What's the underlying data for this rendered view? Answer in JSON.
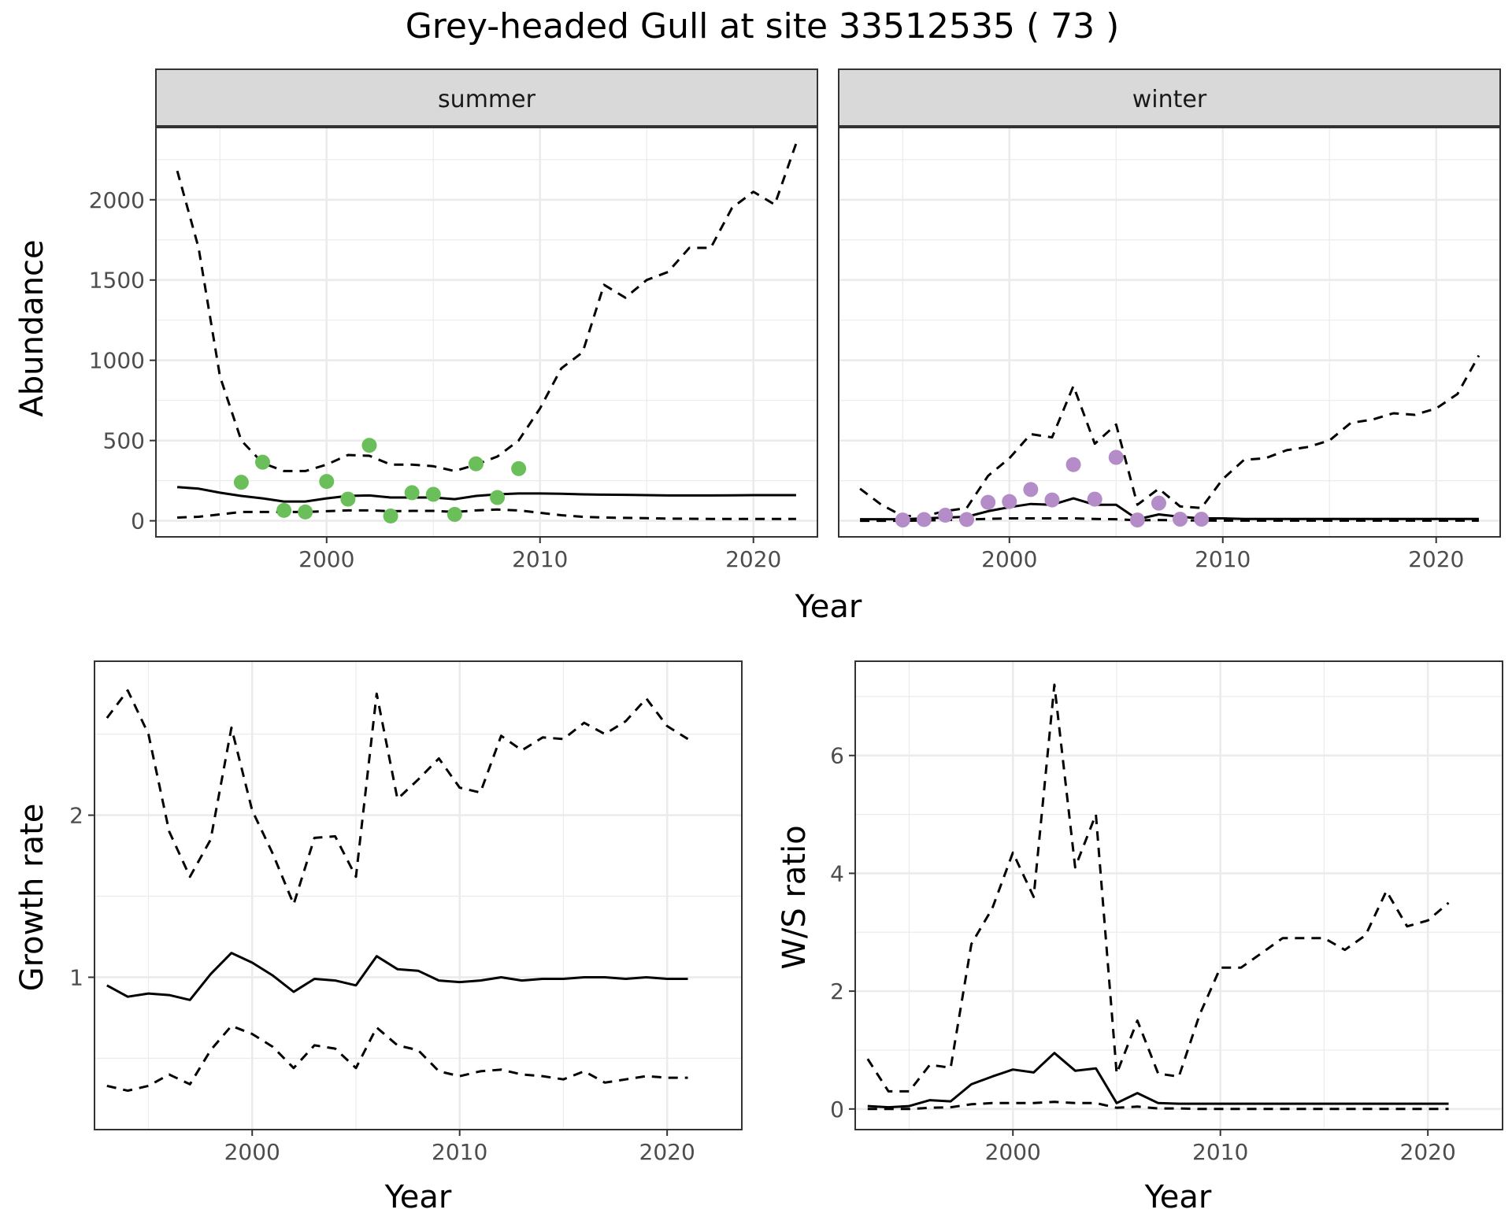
{
  "title": "Grey-headed Gull at site 33512535 ( 73 )",
  "colors": {
    "summer_points": "#6abf5b",
    "winter_points": "#b48cc8",
    "lines": "#000000",
    "strip_fill": "#d9d9d9",
    "grid": "#ebebeb"
  },
  "chart_data": [
    {
      "id": "abundance-summer",
      "type": "line",
      "facet": "summer",
      "xlabel": "Year",
      "ylabel": "Abundance",
      "xlim": [
        1992,
        2023
      ],
      "ylim": [
        -100,
        2450
      ],
      "xticks": [
        2000,
        2010,
        2020
      ],
      "yticks": [
        0,
        500,
        1000,
        1500,
        2000
      ],
      "grid": true,
      "lines": [
        {
          "style": "solid",
          "x": [
            1993,
            1994,
            1995,
            1996,
            1997,
            1998,
            1999,
            2000,
            2001,
            2002,
            2003,
            2004,
            2005,
            2006,
            2007,
            2008,
            2009,
            2010,
            2011,
            2012,
            2013,
            2014,
            2015,
            2016,
            2017,
            2018,
            2019,
            2020,
            2021,
            2022
          ],
          "y": [
            210,
            200,
            175,
            155,
            140,
            120,
            120,
            140,
            155,
            158,
            145,
            145,
            145,
            135,
            155,
            165,
            170,
            170,
            168,
            165,
            163,
            162,
            160,
            158,
            158,
            158,
            159,
            160,
            160,
            160
          ]
        },
        {
          "style": "dashed",
          "x": [
            1993,
            1994,
            1995,
            1996,
            1997,
            1998,
            1999,
            2000,
            2001,
            2002,
            2003,
            2004,
            2005,
            2006,
            2007,
            2008,
            2009,
            2010,
            2011,
            2012,
            2013,
            2014,
            2015,
            2016,
            2017,
            2018,
            2019,
            2020,
            2021,
            2022
          ],
          "y": [
            2180,
            1700,
            900,
            500,
            360,
            310,
            310,
            350,
            410,
            405,
            350,
            350,
            340,
            310,
            350,
            400,
            500,
            700,
            950,
            1050,
            1470,
            1390,
            1500,
            1550,
            1700,
            1700,
            1950,
            2050,
            1970,
            2350
          ]
        },
        {
          "style": "dashed",
          "x": [
            1993,
            1994,
            1995,
            1996,
            1997,
            1998,
            1999,
            2000,
            2001,
            2002,
            2003,
            2004,
            2005,
            2006,
            2007,
            2008,
            2009,
            2010,
            2011,
            2012,
            2013,
            2014,
            2015,
            2016,
            2017,
            2018,
            2019,
            2020,
            2021,
            2022
          ],
          "y": [
            20,
            25,
            40,
            55,
            55,
            55,
            55,
            60,
            65,
            65,
            60,
            62,
            62,
            55,
            65,
            70,
            65,
            50,
            35,
            25,
            20,
            18,
            16,
            14,
            13,
            12,
            12,
            12,
            12,
            12
          ]
        }
      ],
      "points": {
        "x": [
          1996,
          1997,
          1998,
          1999,
          2000,
          2001,
          2002,
          2003,
          2004,
          2005,
          2006,
          2007,
          2008,
          2009
        ],
        "y": [
          240,
          365,
          65,
          55,
          245,
          135,
          470,
          30,
          175,
          165,
          40,
          355,
          145,
          325
        ]
      }
    },
    {
      "id": "abundance-winter",
      "type": "line",
      "facet": "winter",
      "xlabel": "Year",
      "ylabel": "Abundance",
      "xlim": [
        1992,
        2023
      ],
      "ylim": [
        -100,
        2450
      ],
      "xticks": [
        2000,
        2010,
        2020
      ],
      "yticks": [
        0,
        500,
        1000,
        1500,
        2000
      ],
      "grid": true,
      "lines": [
        {
          "style": "solid",
          "x": [
            1993,
            1994,
            1995,
            1996,
            1997,
            1998,
            1999,
            2000,
            2001,
            2002,
            2003,
            2004,
            2005,
            2006,
            2007,
            2008,
            2009,
            2010,
            2011,
            2012,
            2013,
            2014,
            2015,
            2016,
            2017,
            2018,
            2019,
            2020,
            2021,
            2022
          ],
          "y": [
            10,
            10,
            10,
            15,
            20,
            25,
            60,
            85,
            105,
            100,
            140,
            100,
            100,
            10,
            40,
            25,
            15,
            15,
            12,
            12,
            12,
            12,
            12,
            12,
            12,
            12,
            12,
            12,
            12,
            12
          ]
        },
        {
          "style": "dashed",
          "x": [
            1993,
            1994,
            1995,
            1996,
            1997,
            1998,
            1999,
            2000,
            2001,
            2002,
            2003,
            2004,
            2005,
            2006,
            2007,
            2008,
            2009,
            2010,
            2011,
            2012,
            2013,
            2014,
            2015,
            2016,
            2017,
            2018,
            2019,
            2020,
            2021,
            2022
          ],
          "y": [
            200,
            100,
            30,
            30,
            60,
            80,
            280,
            390,
            540,
            520,
            840,
            480,
            600,
            100,
            200,
            90,
            80,
            260,
            380,
            390,
            440,
            460,
            500,
            610,
            630,
            670,
            660,
            700,
            790,
            1030
          ]
        },
        {
          "style": "dashed",
          "x": [
            1993,
            1994,
            1995,
            1996,
            1997,
            1998,
            1999,
            2000,
            2001,
            2002,
            2003,
            2004,
            2005,
            2006,
            2007,
            2008,
            2009,
            2010,
            2011,
            2012,
            2013,
            2014,
            2015,
            2016,
            2017,
            2018,
            2019,
            2020,
            2021,
            2022
          ],
          "y": [
            0,
            0,
            0,
            2,
            5,
            8,
            12,
            15,
            15,
            15,
            15,
            12,
            10,
            3,
            5,
            3,
            2,
            1,
            1,
            1,
            1,
            1,
            1,
            1,
            1,
            1,
            1,
            1,
            1,
            1
          ]
        }
      ],
      "points": {
        "x": [
          1995,
          1996,
          1997,
          1998,
          1999,
          2000,
          2001,
          2002,
          2003,
          2004,
          2005,
          2006,
          2007,
          2008,
          2009
        ],
        "y": [
          5,
          8,
          35,
          8,
          115,
          120,
          195,
          130,
          350,
          135,
          395,
          5,
          110,
          10,
          10
        ]
      }
    },
    {
      "id": "growth-rate",
      "type": "line",
      "xlabel": "Year",
      "ylabel": "Growth rate",
      "xlim": [
        1992.4,
        2023.6
      ],
      "ylim": [
        0.06,
        2.95
      ],
      "xticks": [
        2000,
        2010,
        2020
      ],
      "yticks": [
        1,
        2
      ],
      "grid": true,
      "lines": [
        {
          "style": "solid",
          "x": [
            1993,
            1994,
            1995,
            1996,
            1997,
            1998,
            1999,
            2000,
            2001,
            2002,
            2003,
            2004,
            2005,
            2006,
            2007,
            2008,
            2009,
            2010,
            2011,
            2012,
            2013,
            2014,
            2015,
            2016,
            2017,
            2018,
            2019,
            2020,
            2021
          ],
          "y": [
            0.95,
            0.88,
            0.9,
            0.89,
            0.86,
            1.02,
            1.15,
            1.09,
            1.01,
            0.91,
            0.99,
            0.98,
            0.95,
            1.13,
            1.05,
            1.04,
            0.98,
            0.97,
            0.98,
            1.0,
            0.98,
            0.99,
            0.99,
            1.0,
            1.0,
            0.99,
            1.0,
            0.99,
            0.99
          ]
        },
        {
          "style": "dashed",
          "x": [
            1993,
            1994,
            1995,
            1996,
            1997,
            1998,
            1999,
            2000,
            2001,
            2002,
            2003,
            2004,
            2005,
            2006,
            2007,
            2008,
            2009,
            2010,
            2011,
            2012,
            2013,
            2014,
            2015,
            2016,
            2017,
            2018,
            2019,
            2020,
            2021
          ],
          "y": [
            2.6,
            2.77,
            2.5,
            1.9,
            1.62,
            1.85,
            2.54,
            2.03,
            1.76,
            1.45,
            1.86,
            1.87,
            1.62,
            2.75,
            2.1,
            2.22,
            2.35,
            2.17,
            2.14,
            2.49,
            2.4,
            2.48,
            2.47,
            2.57,
            2.5,
            2.58,
            2.72,
            2.55,
            2.47
          ]
        },
        {
          "style": "dashed",
          "x": [
            1993,
            1994,
            1995,
            1996,
            1997,
            1998,
            1999,
            2000,
            2001,
            2002,
            2003,
            2004,
            2005,
            2006,
            2007,
            2008,
            2009,
            2010,
            2011,
            2012,
            2013,
            2014,
            2015,
            2016,
            2017,
            2018,
            2019,
            2020,
            2021
          ],
          "y": [
            0.33,
            0.3,
            0.33,
            0.4,
            0.34,
            0.55,
            0.7,
            0.65,
            0.57,
            0.44,
            0.58,
            0.56,
            0.44,
            0.69,
            0.58,
            0.55,
            0.42,
            0.39,
            0.42,
            0.43,
            0.4,
            0.39,
            0.37,
            0.42,
            0.35,
            0.37,
            0.39,
            0.38,
            0.38
          ]
        }
      ]
    },
    {
      "id": "ws-ratio",
      "type": "line",
      "xlabel": "Year",
      "ylabel": "W/S ratio",
      "xlim": [
        1992.4,
        2023.6
      ],
      "ylim": [
        -0.35,
        7.6
      ],
      "xticks": [
        2000,
        2010,
        2020
      ],
      "yticks": [
        0,
        2,
        4,
        6
      ],
      "grid": true,
      "lines": [
        {
          "style": "solid",
          "x": [
            1993,
            1994,
            1995,
            1996,
            1997,
            1998,
            1999,
            2000,
            2001,
            2002,
            2003,
            2004,
            2005,
            2006,
            2007,
            2008,
            2009,
            2010,
            2011,
            2012,
            2013,
            2014,
            2015,
            2016,
            2017,
            2018,
            2019,
            2020,
            2021
          ],
          "y": [
            0.05,
            0.03,
            0.05,
            0.15,
            0.13,
            0.42,
            0.55,
            0.67,
            0.62,
            0.95,
            0.65,
            0.69,
            0.1,
            0.27,
            0.1,
            0.09,
            0.09,
            0.09,
            0.09,
            0.09,
            0.09,
            0.09,
            0.09,
            0.09,
            0.09,
            0.09,
            0.09,
            0.09,
            0.09
          ]
        },
        {
          "style": "dashed",
          "x": [
            1993,
            1994,
            1995,
            1996,
            1997,
            1998,
            1999,
            2000,
            2001,
            2002,
            2003,
            2004,
            2005,
            2006,
            2007,
            2008,
            2009,
            2010,
            2011,
            2012,
            2013,
            2014,
            2015,
            2016,
            2017,
            2018,
            2019,
            2020,
            2021
          ],
          "y": [
            0.85,
            0.3,
            0.3,
            0.75,
            0.7,
            2.8,
            3.4,
            4.35,
            3.6,
            7.2,
            4.1,
            5.0,
            0.6,
            1.5,
            0.6,
            0.55,
            1.6,
            2.4,
            2.4,
            2.65,
            2.9,
            2.9,
            2.9,
            2.7,
            2.95,
            3.7,
            3.1,
            3.2,
            3.5
          ]
        },
        {
          "style": "dashed",
          "x": [
            1993,
            1994,
            1995,
            1996,
            1997,
            1998,
            1999,
            2000,
            2001,
            2002,
            2003,
            2004,
            2005,
            2006,
            2007,
            2008,
            2009,
            2010,
            2011,
            2012,
            2013,
            2014,
            2015,
            2016,
            2017,
            2018,
            2019,
            2020,
            2021
          ],
          "y": [
            0.0,
            0.0,
            0.0,
            0.02,
            0.03,
            0.08,
            0.1,
            0.1,
            0.1,
            0.12,
            0.1,
            0.1,
            0.02,
            0.04,
            0.01,
            0.01,
            0.0,
            0.0,
            0.0,
            0.0,
            0.0,
            0.0,
            0.0,
            0.0,
            0.0,
            0.0,
            0.0,
            0.0,
            0.0
          ]
        }
      ]
    }
  ]
}
